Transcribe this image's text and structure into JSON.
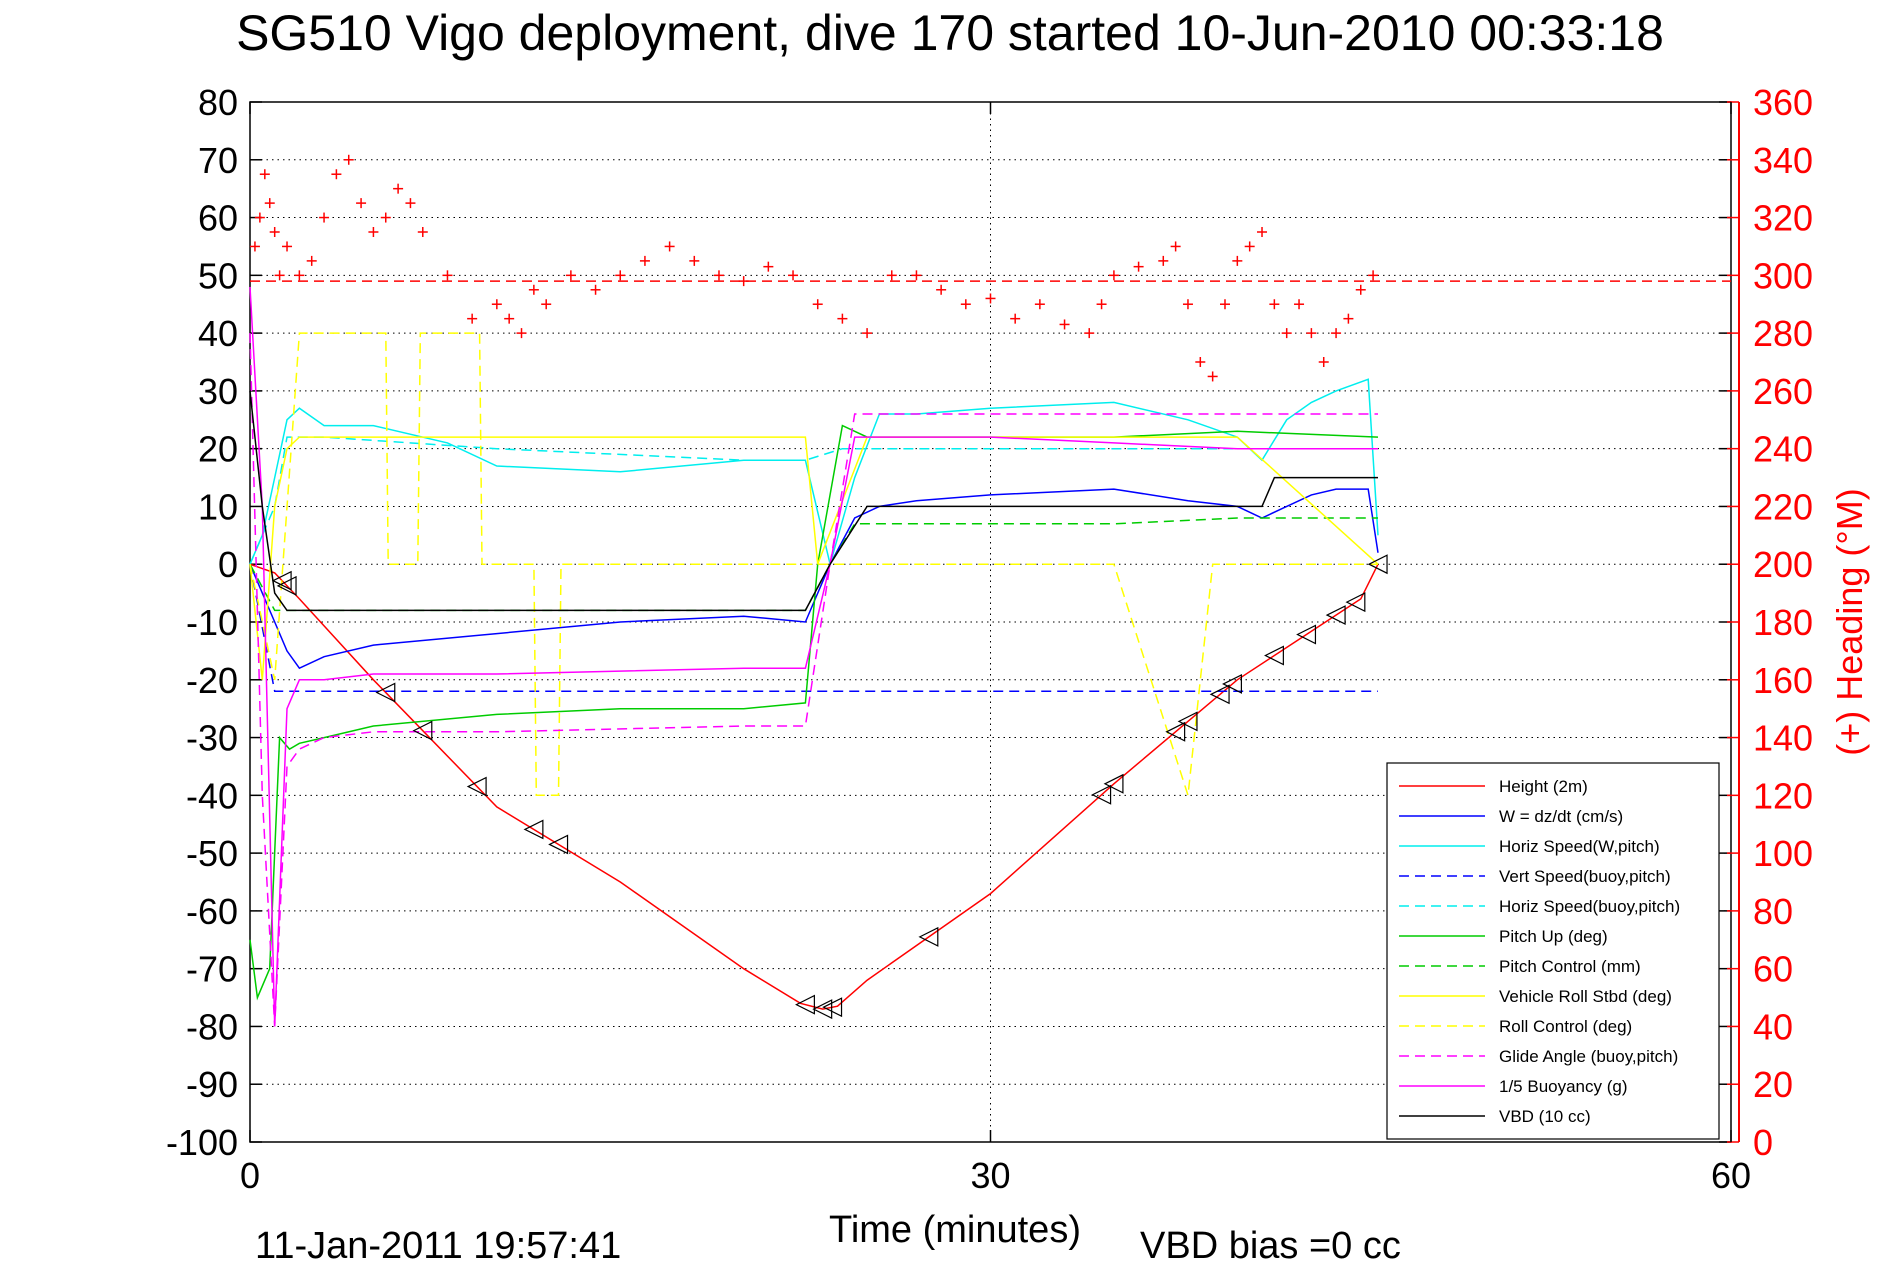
{
  "chart_data": {
    "type": "line",
    "title": "SG510 Vigo deployment, dive 170 started 10-Jun-2010 00:33:18",
    "xlabel": "Time (minutes)",
    "ylabel": "",
    "y2label": "(+) Heading (°M)",
    "xlim": [
      0,
      60
    ],
    "ylim": [
      -100,
      80
    ],
    "y2lim": [
      0,
      360
    ],
    "xticks": [
      "0",
      "30",
      "60"
    ],
    "yticks": [
      "80",
      "70",
      "60",
      "50",
      "40",
      "30",
      "20",
      "10",
      "0",
      "-10",
      "-20",
      "-30",
      "-40",
      "-50",
      "-60",
      "-70",
      "-80",
      "-90",
      "-100"
    ],
    "y2ticks": [
      "360",
      "340",
      "320",
      "300",
      "280",
      "260",
      "240",
      "220",
      "200",
      "180",
      "160",
      "140",
      "120",
      "100",
      "80",
      "60",
      "40",
      "20",
      "0"
    ],
    "grid": true,
    "legend_position": "bottom-right",
    "footer_left": "11-Jan-2011 19:57:41",
    "footer_right": "VBD bias =0 cc",
    "series": [
      {
        "name": "Height (2m)",
        "color": "#ff0000",
        "dash": "solid",
        "x": [
          0,
          1,
          2,
          5,
          10,
          15,
          20,
          22.3,
          23.2,
          23.8,
          25,
          30,
          35,
          40,
          45,
          45.7
        ],
        "y": [
          0,
          -1.5,
          -6,
          -20,
          -42,
          -55,
          -70,
          -76,
          -77,
          -76.5,
          -72,
          -57,
          -38,
          -20,
          -6,
          0
        ]
      },
      {
        "name": "W = dz/dt (cm/s)",
        "color": "#0000ff",
        "dash": "solid",
        "x": [
          0,
          0.5,
          1,
          1.5,
          2,
          3,
          5,
          10,
          15,
          20,
          22.5,
          23.5,
          24.5,
          25.5,
          27,
          30,
          35,
          38,
          40,
          41,
          42,
          43,
          44,
          45.3,
          45.7
        ],
        "y": [
          0,
          -5,
          -10,
          -15,
          -18,
          -16,
          -14,
          -12,
          -10,
          -9,
          -10,
          0,
          8,
          10,
          11,
          12,
          13,
          11,
          10,
          8,
          10,
          12,
          13,
          13,
          2
        ]
      },
      {
        "name": "Horiz Speed(W,pitch)",
        "color": "#00eeee",
        "dash": "solid",
        "x": [
          0,
          0.5,
          1,
          1.5,
          2,
          3,
          5,
          8,
          10,
          15,
          20,
          22.5,
          23.5,
          24.5,
          25.5,
          27,
          30,
          35,
          38,
          40,
          41,
          42,
          43,
          44,
          45.3,
          45.7
        ],
        "y": [
          0,
          5,
          15,
          25,
          27,
          24,
          24,
          21,
          17,
          16,
          18,
          18,
          0,
          15,
          26,
          26,
          27,
          28,
          25,
          22,
          18,
          25,
          28,
          30,
          32,
          5
        ]
      },
      {
        "name": "Vert Speed(buoy,pitch)",
        "color": "#0000ff",
        "dash": "dashed",
        "x": [
          0,
          1,
          1.5,
          2,
          22.5,
          23.5,
          24.5,
          45.7
        ],
        "y": [
          0,
          -22,
          -22,
          -22,
          -22,
          -22,
          -22,
          -22
        ]
      },
      {
        "name": "Horiz Speed(buoy,pitch)",
        "color": "#00eeee",
        "dash": "dashed",
        "x": [
          0,
          1,
          1.5,
          3,
          10,
          20,
          22.5,
          24,
          25,
          30,
          35,
          40,
          45.7
        ],
        "y": [
          0,
          10,
          22,
          22,
          20,
          18,
          18,
          20,
          20,
          20,
          20,
          20,
          20
        ]
      },
      {
        "name": "Pitch Up (deg)",
        "color": "#00cc00",
        "dash": "solid",
        "x": [
          0,
          0.3,
          0.8,
          1.2,
          1.6,
          2,
          3,
          5,
          10,
          15,
          20,
          22.5,
          23,
          24,
          25,
          30,
          35,
          40,
          45.7
        ],
        "y": [
          -65,
          -75,
          -70,
          -30,
          -32,
          -31,
          -30,
          -28,
          -26,
          -25,
          -25,
          -24,
          0,
          24,
          22,
          22,
          22,
          23,
          22
        ]
      },
      {
        "name": "Pitch Control (mm)",
        "color": "#00cc00",
        "dash": "dashed",
        "x": [
          0,
          1,
          1.5,
          22.5,
          23.5,
          24.5,
          30,
          35,
          40,
          45.7
        ],
        "y": [
          0,
          -8,
          -8,
          -8,
          0,
          7,
          7,
          7,
          8,
          8
        ]
      },
      {
        "name": "Vehicle Roll Stbd (deg)",
        "color": "#ffff00",
        "dash": "solid",
        "x": [
          0,
          0.5,
          1,
          1.5,
          2,
          10,
          20,
          22.5,
          23,
          25,
          30,
          35,
          40,
          45.7
        ],
        "y": [
          0,
          -20,
          10,
          20,
          22,
          22,
          22,
          22,
          0,
          22,
          22,
          22,
          22,
          0
        ]
      },
      {
        "name": "Roll Control (deg)",
        "color": "#ffff00",
        "dash": "dashed",
        "x": [
          0,
          1,
          2,
          5.5,
          5.6,
          6.8,
          6.9,
          9.3,
          9.4,
          11.5,
          11.6,
          12.5,
          12.6,
          22.5,
          23,
          26,
          27.5,
          34,
          35,
          38,
          39,
          45.7
        ],
        "y": [
          0,
          -20,
          40,
          40,
          0,
          0,
          40,
          40,
          0,
          0,
          -40,
          -40,
          0,
          0,
          0,
          0,
          0,
          0,
          0,
          -40,
          0,
          0
        ]
      },
      {
        "name": "Glide Angle (buoy,pitch)",
        "color": "#ff00ff",
        "dash": "dashed",
        "x": [
          0,
          0.5,
          1,
          1.5,
          2,
          3,
          5,
          10,
          20,
          22.5,
          23.5,
          24.5,
          30,
          35,
          40,
          45.7
        ],
        "y": [
          40,
          -40,
          -80,
          -35,
          -32,
          -30,
          -29,
          -29,
          -28,
          -28,
          0,
          26,
          26,
          26,
          26,
          26
        ]
      },
      {
        "name": "1/5 Buoyancy (g)",
        "color": "#ff00ff",
        "dash": "solid",
        "x": [
          0,
          0.5,
          1,
          1.5,
          2,
          3,
          5,
          10,
          20,
          22.5,
          23.5,
          24.5,
          25.5,
          30,
          35,
          40,
          45.7
        ],
        "y": [
          48,
          10,
          -80,
          -25,
          -20,
          -20,
          -19,
          -19,
          -18,
          -18,
          0,
          22,
          22,
          22,
          21,
          20,
          20
        ]
      },
      {
        "name": "VBD (10 cc)",
        "color": "#000000",
        "dash": "solid",
        "x": [
          0,
          0.5,
          1,
          1.5,
          2,
          10,
          20,
          22.5,
          23.5,
          25,
          30,
          35,
          41,
          41.5,
          45.7
        ],
        "y": [
          30,
          10,
          -5,
          -8,
          -8,
          -8,
          -8,
          -8,
          0,
          10,
          10,
          10,
          10,
          15,
          15
        ]
      }
    ],
    "heading_points": {
      "name": "Heading",
      "color": "#ff0000",
      "marker": "+",
      "x": [
        0.2,
        0.4,
        0.6,
        0.8,
        1.0,
        1.2,
        1.5,
        2,
        2.5,
        3,
        3.5,
        4,
        4.5,
        5,
        5.5,
        6,
        6.5,
        7,
        8,
        9,
        10,
        10.5,
        11,
        11.5,
        12,
        13,
        14,
        15,
        16,
        17,
        18,
        19,
        20,
        21,
        22,
        23,
        24,
        25,
        26,
        27,
        28,
        29,
        30,
        31,
        32,
        33,
        34,
        34.5,
        35,
        36,
        37,
        37.5,
        38,
        38.5,
        39,
        39.5,
        40,
        40.5,
        41,
        41.5,
        42,
        42.5,
        43,
        43.5,
        44,
        44.5,
        45,
        45.5
      ],
      "y": [
        310,
        320,
        335,
        325,
        315,
        300,
        310,
        300,
        305,
        320,
        335,
        340,
        325,
        315,
        320,
        330,
        325,
        315,
        300,
        285,
        290,
        285,
        280,
        295,
        290,
        300,
        295,
        300,
        305,
        310,
        305,
        300,
        298,
        303,
        300,
        290,
        285,
        280,
        300,
        300,
        295,
        290,
        292,
        285,
        290,
        283,
        280,
        290,
        300,
        303,
        305,
        310,
        290,
        270,
        265,
        290,
        305,
        310,
        315,
        290,
        280,
        290,
        280,
        270,
        280,
        285,
        295,
        300
      ]
    },
    "heading_mean": 298,
    "triangle_markers_x": [
      1.3,
      1.5,
      5.5,
      7,
      9.2,
      11.5,
      12.5,
      22.5,
      23.2,
      23.6,
      27.5,
      34.5,
      35,
      37.5,
      38,
      39.3,
      39.8,
      41.5,
      42.8,
      44,
      44.8,
      45.7
    ]
  }
}
